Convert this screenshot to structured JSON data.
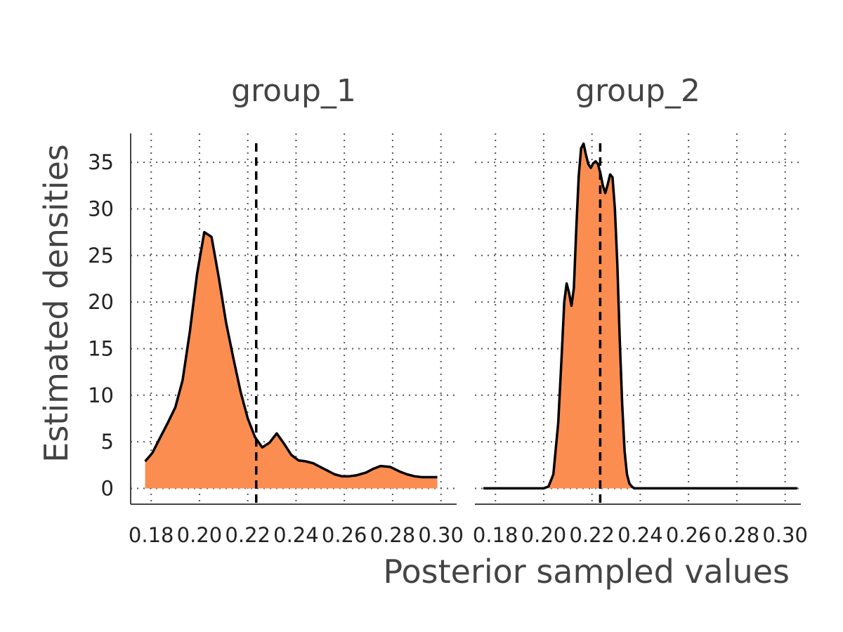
{
  "chart_data": {
    "type": "area",
    "facet_titles": [
      "group_1",
      "group_2"
    ],
    "xlabel": "Posterior sampled values",
    "ylabel": "Estimated densities",
    "x_ticks": [
      "0.18",
      "0.20",
      "0.22",
      "0.24",
      "0.26",
      "0.28",
      "0.30"
    ],
    "x_tick_values": [
      0.18,
      0.2,
      0.22,
      0.24,
      0.26,
      0.28,
      0.3
    ],
    "y_ticks": [
      "0",
      "5",
      "10",
      "15",
      "20",
      "25",
      "30",
      "35"
    ],
    "y_tick_values": [
      0,
      5,
      10,
      15,
      20,
      25,
      30,
      35
    ],
    "xlim": [
      0.1715,
      0.3065
    ],
    "ylim": [
      -1.7,
      38.1
    ],
    "grid": true,
    "fill_color": "#fc8d51",
    "line_color": "#000000",
    "panels": [
      {
        "name": "group_1",
        "reference_line_x": 0.2235,
        "x": [
          0.1775,
          0.1805,
          0.184,
          0.187,
          0.19,
          0.193,
          0.196,
          0.199,
          0.202,
          0.205,
          0.208,
          0.211,
          0.214,
          0.217,
          0.22,
          0.223,
          0.226,
          0.229,
          0.232,
          0.235,
          0.238,
          0.241,
          0.244,
          0.247,
          0.25,
          0.253,
          0.256,
          0.259,
          0.262,
          0.265,
          0.269,
          0.272,
          0.275,
          0.279,
          0.283,
          0.286,
          0.289,
          0.292,
          0.295,
          0.2985
        ],
        "y": [
          2.9,
          3.8,
          5.6,
          7.1,
          8.7,
          11.6,
          16.8,
          23.0,
          27.5,
          27.0,
          22.6,
          17.8,
          14.0,
          10.4,
          7.5,
          5.5,
          4.4,
          4.9,
          5.9,
          4.8,
          3.6,
          3.0,
          2.9,
          2.7,
          2.3,
          1.9,
          1.5,
          1.3,
          1.3,
          1.4,
          1.7,
          2.1,
          2.4,
          2.3,
          1.8,
          1.5,
          1.3,
          1.2,
          1.2,
          1.2
        ]
      },
      {
        "name": "group_2",
        "reference_line_x": 0.2234,
        "x": [
          0.175,
          0.19,
          0.2,
          0.202,
          0.204,
          0.206,
          0.2075,
          0.2085,
          0.2095,
          0.2105,
          0.2115,
          0.2125,
          0.2135,
          0.2145,
          0.2155,
          0.2165,
          0.2175,
          0.2185,
          0.2195,
          0.2205,
          0.2215,
          0.2225,
          0.2235,
          0.2245,
          0.2255,
          0.2265,
          0.2275,
          0.2285,
          0.2295,
          0.2305,
          0.2315,
          0.2325,
          0.2335,
          0.2345,
          0.2355,
          0.2365,
          0.2375,
          0.2385,
          0.2395,
          0.241,
          0.243,
          0.247,
          0.26,
          0.28,
          0.305
        ],
        "y": [
          0,
          0,
          0,
          0.2,
          1.5,
          7.0,
          14.5,
          20.0,
          22.0,
          21.0,
          19.6,
          21.5,
          28.0,
          33.5,
          36.5,
          37.0,
          35.8,
          34.8,
          34.4,
          34.9,
          35.1,
          34.8,
          33.8,
          32.5,
          31.7,
          32.6,
          33.7,
          33.4,
          30.0,
          24.0,
          16.0,
          9.0,
          4.0,
          1.5,
          0.5,
          0.2,
          0,
          0,
          0,
          0,
          0,
          0,
          0,
          0,
          0
        ]
      }
    ]
  }
}
